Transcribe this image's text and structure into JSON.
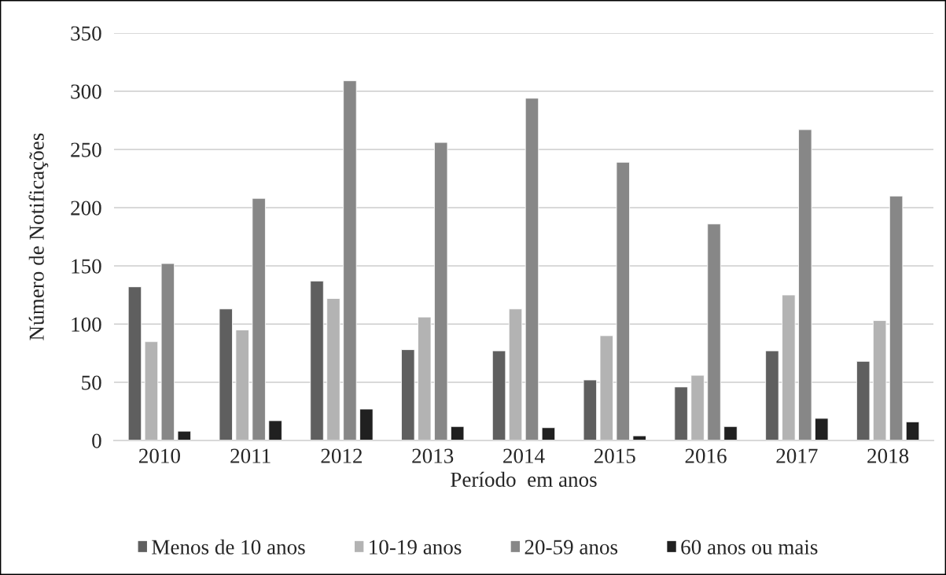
{
  "chart_data": {
    "type": "bar",
    "xlabel": "Período  em anos",
    "ylabel": "Número de Notificações",
    "categories": [
      "2010",
      "2011",
      "2012",
      "2013",
      "2014",
      "2015",
      "2016",
      "2017",
      "2018"
    ],
    "series": [
      {
        "name": "Menos de 10 anos",
        "color": "#5f5f5f",
        "values": [
          132,
          113,
          137,
          78,
          77,
          52,
          46,
          77,
          68
        ]
      },
      {
        "name": "10-19 anos",
        "color": "#b3b3b3",
        "values": [
          85,
          95,
          122,
          106,
          113,
          90,
          56,
          125,
          103
        ]
      },
      {
        "name": "20-59 anos",
        "color": "#878787",
        "values": [
          152,
          208,
          309,
          256,
          294,
          239,
          186,
          267,
          210
        ]
      },
      {
        "name": "60 anos ou mais",
        "color": "#202020",
        "values": [
          8,
          17,
          27,
          12,
          11,
          4,
          12,
          19,
          16
        ]
      }
    ],
    "ylim": [
      0,
      350
    ],
    "yticks": [
      0,
      50,
      100,
      150,
      200,
      250,
      300,
      350
    ],
    "grid": "y",
    "legend": "bottom"
  }
}
